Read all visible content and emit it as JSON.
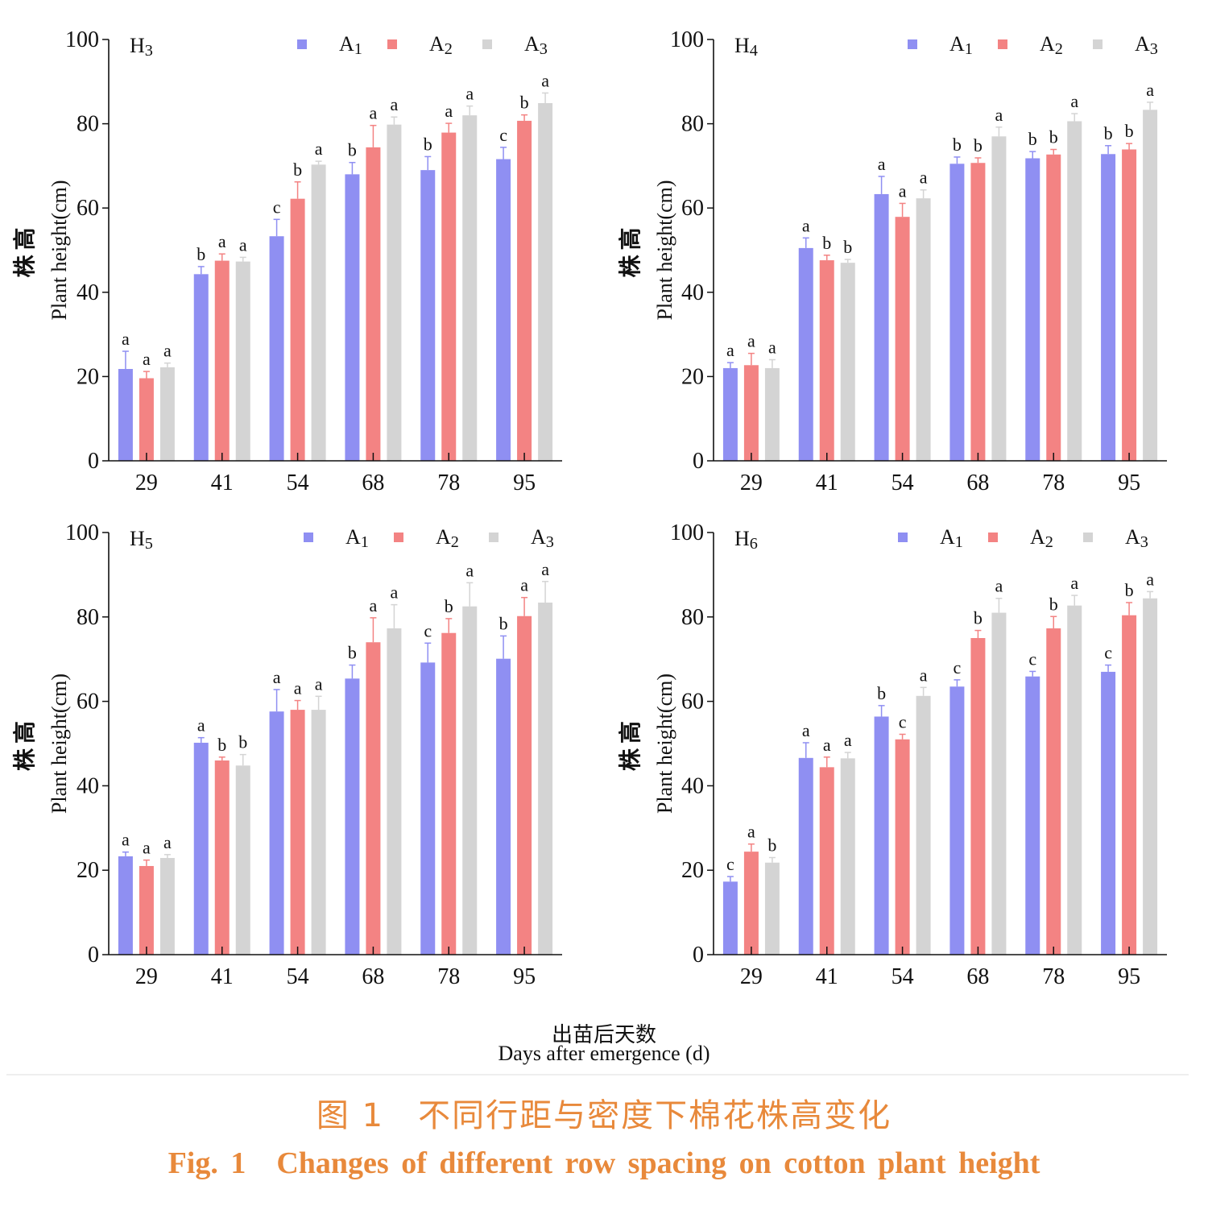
{
  "colors": {
    "A1": "#8f8ff2",
    "A2": "#f38383",
    "A3": "#d4d4d4",
    "caption": "#e8893b"
  },
  "shared_xlabel": {
    "cn": "出苗后天数",
    "en": "Days after emergence (d)"
  },
  "caption": {
    "cn": "图 1　不同行距与密度下棉花株高变化",
    "en": "Fig. 1　Changes of different row spacing on cotton plant height"
  },
  "chart_data": [
    {
      "type": "bar",
      "panel": "H3",
      "categories": [
        "29",
        "41",
        "54",
        "68",
        "78",
        "95"
      ],
      "ylabel_cn": "株高",
      "ylabel_en": "Plant height(cm)",
      "ylim": [
        0,
        100
      ],
      "yticks": [
        0,
        20,
        40,
        60,
        80,
        100
      ],
      "legend": "top-right",
      "series": [
        {
          "name": "A1",
          "values": [
            21.8,
            44.3,
            53.3,
            68.0,
            69.0,
            71.6
          ],
          "errors": [
            4.2,
            1.8,
            4.0,
            2.8,
            3.2,
            2.8
          ],
          "letters": [
            "a",
            "b",
            "c",
            "b",
            "b",
            "c"
          ]
        },
        {
          "name": "A2",
          "values": [
            19.6,
            47.5,
            62.2,
            74.4,
            77.9,
            80.7
          ],
          "errors": [
            1.6,
            1.6,
            4.0,
            5.2,
            2.2,
            1.4
          ],
          "letters": [
            "a",
            "a",
            "b",
            "a",
            "a",
            "b"
          ]
        },
        {
          "name": "A3",
          "values": [
            22.2,
            47.3,
            70.3,
            79.8,
            82.0,
            84.9
          ],
          "errors": [
            1.0,
            1.0,
            0.8,
            1.8,
            2.2,
            2.4
          ],
          "letters": [
            "a",
            "a",
            "a",
            "a",
            "a",
            "a"
          ]
        }
      ]
    },
    {
      "type": "bar",
      "panel": "H4",
      "categories": [
        "29",
        "41",
        "54",
        "68",
        "78",
        "95"
      ],
      "ylabel_cn": "株高",
      "ylabel_en": "Plant height(cm)",
      "ylim": [
        0,
        100
      ],
      "yticks": [
        0,
        20,
        40,
        60,
        80,
        100
      ],
      "legend": "top-right",
      "series": [
        {
          "name": "A1",
          "values": [
            22.0,
            50.5,
            63.3,
            70.5,
            71.8,
            72.8
          ],
          "errors": [
            1.3,
            2.4,
            4.2,
            1.6,
            1.6,
            2.0
          ],
          "letters": [
            "a",
            "a",
            "a",
            "b",
            "b",
            "b"
          ]
        },
        {
          "name": "A2",
          "values": [
            22.7,
            47.6,
            57.9,
            70.7,
            72.7,
            73.9
          ],
          "errors": [
            2.8,
            1.2,
            3.2,
            1.2,
            1.2,
            1.4
          ],
          "letters": [
            "a",
            "b",
            "a",
            "b",
            "b",
            "b"
          ]
        },
        {
          "name": "A3",
          "values": [
            22.0,
            47.0,
            62.3,
            77.0,
            80.6,
            83.3
          ],
          "errors": [
            2.0,
            0.8,
            2.0,
            2.2,
            1.8,
            1.8
          ],
          "letters": [
            "a",
            "b",
            "a",
            "a",
            "a",
            "a"
          ]
        }
      ]
    },
    {
      "type": "bar",
      "panel": "H5",
      "categories": [
        "29",
        "41",
        "54",
        "68",
        "78",
        "95"
      ],
      "ylabel_cn": "株高",
      "ylabel_en": "Plant height(cm)",
      "ylim": [
        0,
        100
      ],
      "yticks": [
        0,
        20,
        40,
        60,
        80,
        100
      ],
      "legend": "top-right",
      "series": [
        {
          "name": "A1",
          "values": [
            23.3,
            50.2,
            57.6,
            65.4,
            69.2,
            70.1
          ],
          "errors": [
            1.0,
            1.2,
            5.2,
            3.2,
            4.6,
            5.4
          ],
          "letters": [
            "a",
            "a",
            "a",
            "b",
            "c",
            "b"
          ]
        },
        {
          "name": "A2",
          "values": [
            21.0,
            46.0,
            58.0,
            74.0,
            76.2,
            80.2
          ],
          "errors": [
            1.4,
            0.8,
            2.2,
            5.8,
            3.4,
            4.4
          ],
          "letters": [
            "a",
            "b",
            "a",
            "a",
            "b",
            "a"
          ]
        },
        {
          "name": "A3",
          "values": [
            22.9,
            44.8,
            58.0,
            77.3,
            82.5,
            83.4
          ],
          "errors": [
            0.8,
            2.6,
            3.2,
            5.6,
            5.6,
            5.0
          ],
          "letters": [
            "a",
            "b",
            "a",
            "a",
            "a",
            "a"
          ]
        }
      ]
    },
    {
      "type": "bar",
      "panel": "H6",
      "categories": [
        "29",
        "41",
        "54",
        "68",
        "78",
        "95"
      ],
      "ylabel_cn": "株高",
      "ylabel_en": "Plant height(cm)",
      "ylim": [
        0,
        100
      ],
      "yticks": [
        0,
        20,
        40,
        60,
        80,
        100
      ],
      "legend": "top-right",
      "series": [
        {
          "name": "A1",
          "values": [
            17.3,
            46.6,
            56.4,
            63.5,
            65.9,
            67.0
          ],
          "errors": [
            1.2,
            3.6,
            2.6,
            1.6,
            1.2,
            1.6
          ],
          "letters": [
            "c",
            "a",
            "b",
            "c",
            "c",
            "c"
          ]
        },
        {
          "name": "A2",
          "values": [
            24.4,
            44.4,
            51.0,
            75.0,
            77.3,
            80.4
          ],
          "errors": [
            1.8,
            2.4,
            1.2,
            1.8,
            2.8,
            3.0
          ],
          "letters": [
            "a",
            "a",
            "c",
            "b",
            "b",
            "b"
          ]
        },
        {
          "name": "A3",
          "values": [
            21.8,
            46.5,
            61.3,
            81.0,
            82.7,
            84.4
          ],
          "errors": [
            1.2,
            1.4,
            2.0,
            3.4,
            2.4,
            1.6
          ],
          "letters": [
            "b",
            "a",
            "a",
            "a",
            "a",
            "a"
          ]
        }
      ]
    }
  ]
}
